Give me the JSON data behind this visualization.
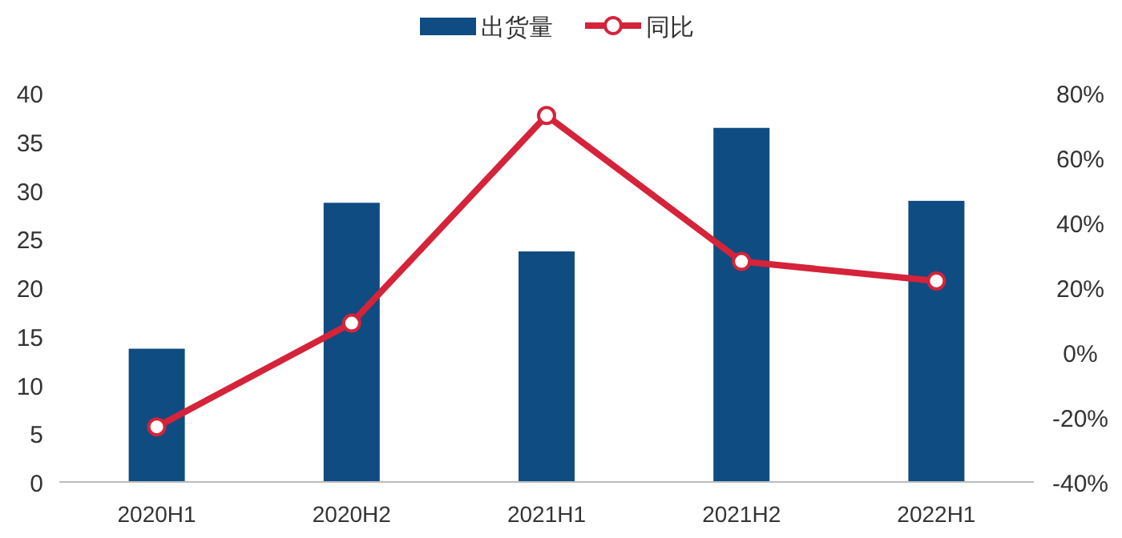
{
  "chart_data": {
    "type": "bar",
    "categories": [
      "2020H1",
      "2020H2",
      "2021H1",
      "2021H2",
      "2022H1"
    ],
    "series": [
      {
        "name": "出货量",
        "color": "#0f4c81",
        "values": [
          13.7,
          28.7,
          23.7,
          36.4,
          28.9
        ]
      },
      {
        "name": "同比",
        "type": "line",
        "axis": "y2",
        "color": "#d5233a",
        "marker": "circle",
        "values": [
          -23,
          9,
          73,
          28,
          22
        ]
      }
    ],
    "ylim": [
      0,
      40
    ],
    "yticks": [
      0,
      5,
      10,
      15,
      20,
      25,
      30,
      35,
      40
    ],
    "y2lim": [
      -40,
      80
    ],
    "y2ticks": [
      {
        "value": -40,
        "label": "-40%"
      },
      {
        "value": -20,
        "label": "-20%"
      },
      {
        "value": 0,
        "label": "0%"
      },
      {
        "value": 20,
        "label": "20%"
      },
      {
        "value": 40,
        "label": "40%"
      },
      {
        "value": 60,
        "label": "60%"
      },
      {
        "value": 80,
        "label": "80%"
      }
    ],
    "legend": "top",
    "grid": false
  }
}
